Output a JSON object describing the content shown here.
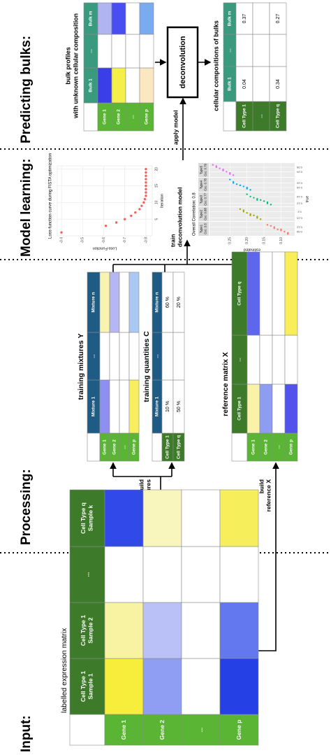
{
  "headings": [
    "Input:",
    "Processing:",
    "Model learning:",
    "Predicting bulks:"
  ],
  "expression_matrix": {
    "title": "labelled expression matrix",
    "columns": [
      [
        "Cell Type 1",
        "Sample 1"
      ],
      [
        "Cell Type 1",
        "Sample 2"
      ],
      [
        "..."
      ],
      [
        "Cell Type q",
        "Sample k"
      ]
    ],
    "rows": [
      "Gene 1",
      "Gene 2",
      "...",
      "Gene p"
    ],
    "colors": [
      [
        "#f7ee3c",
        "#f8f3a2",
        "#ffffff",
        "#3149e8"
      ],
      [
        "#8f9df3",
        "#bac1f6",
        "#ffffff",
        "#f8f5bd"
      ],
      [
        "#ffffff",
        "#ffffff",
        "#ffffff",
        "#ffffff"
      ],
      [
        "#2541e6",
        "#6378ee",
        "#ffffff",
        "#f7ee5c"
      ]
    ]
  },
  "arrows": {
    "build_mixtures": [
      "build",
      "training mixtures"
    ],
    "build_reference": [
      "build",
      "reference X"
    ],
    "train": [
      "train",
      "deconvolution model"
    ],
    "apply": "apply model"
  },
  "training_mixtures": {
    "title": "training mixtures Y",
    "columns": [
      "Mixture 1",
      "...",
      "Mixture n"
    ],
    "rows": [
      "Gene 1",
      "Gene 2",
      "...",
      "Gene p"
    ],
    "colors": [
      [
        "#8e90f0",
        "#ffffff",
        "#f8f4b0"
      ],
      [
        "#ffffff",
        "#ffffff",
        "#b6b6f2"
      ],
      [
        "#ffffff",
        "#ffffff",
        "#ffffff"
      ],
      [
        "#f8ef60",
        "#ffffff",
        "#a9c8f2"
      ]
    ]
  },
  "training_quantities": {
    "title": "training quantities C",
    "columns": [
      "Mixture 1",
      "...",
      "Mixture n"
    ],
    "rows": [
      "Cell Type 1",
      "Cell Type q"
    ],
    "cells": [
      [
        "10 %",
        null,
        "60 %"
      ],
      [
        "50 %",
        null,
        "20 %"
      ]
    ]
  },
  "reference_matrix": {
    "title": "reference matrix X",
    "columns": [
      "Cell Type 1",
      "...",
      "Cell Type q"
    ],
    "rows": [
      "Gene 1",
      "Gene 2",
      "...",
      "Gene p"
    ],
    "colors": [
      [
        "#f8f3a8",
        "#ffffff",
        "#5e66ee"
      ],
      [
        "#8e9cf3",
        "#ffffff",
        "#ffffff"
      ],
      [
        "#ffffff",
        "#ffffff",
        "#ffffff"
      ],
      [
        "#5252ec",
        "#ffffff",
        "#f8ee5a"
      ]
    ]
  },
  "chart_data": [
    {
      "type": "scatter",
      "title": "Loss-function curve during FISTA optimization",
      "xlabel": "Iteration",
      "ylabel": "Loss-Function",
      "x": [
        1,
        3,
        4,
        5,
        6,
        7,
        8,
        9,
        10,
        11,
        12,
        13,
        14,
        15,
        16,
        17,
        18,
        19,
        20
      ],
      "values": [
        -0.4,
        -0.61,
        -0.66,
        -0.7,
        -0.73,
        -0.75,
        -0.77,
        -0.78,
        -0.79,
        -0.795,
        -0.8,
        -0.8,
        -0.8,
        -0.8,
        -0.8,
        -0.8,
        -0.8,
        -0.8,
        -0.8
      ],
      "xlim": [
        0,
        21
      ],
      "ylim": [
        -0.83,
        -0.38
      ],
      "xticks": [
        5,
        10,
        15,
        20
      ],
      "yticks": [
        -0.8,
        -0.7,
        -0.6,
        -0.5,
        -0.4
      ],
      "color": "#f0625a",
      "grid": true
    },
    {
      "type": "facet_scatter",
      "title": "Overall Correlation: 0.8",
      "xlabel": "true",
      "ylabel": "estimated",
      "ylim": [
        0.06,
        0.31
      ],
      "yticks": [
        {
          "value": 0.1,
          "label": "0.10"
        },
        0.15,
        {
          "value": 0.2,
          "label": "0.20"
        },
        0.25
      ],
      "grid": true,
      "facets": [
        {
          "name": "Type1",
          "label": "Ccc: 0.8",
          "color": "#f8766d",
          "xlim": [
            0.05,
            0.16
          ],
          "xticks": [
            0.08,
            0.12
          ],
          "x": [
            0.06,
            0.07,
            0.08,
            0.09,
            0.1,
            0.1,
            0.11,
            0.12,
            0.13,
            0.14
          ],
          "values": [
            0.08,
            0.08,
            0.09,
            0.1,
            0.1,
            0.11,
            0.12,
            0.12,
            0.13,
            0.14
          ]
        },
        {
          "name": "Type2",
          "label": "Ccc: 0.88",
          "color": "#a3a500",
          "xlim": [
            0.13,
            0.23
          ],
          "xticks": [
            0.15,
            0.2
          ],
          "x": [
            0.14,
            0.15,
            0.16,
            0.17,
            0.17,
            0.18,
            0.19,
            0.2,
            0.21,
            0.22
          ],
          "values": [
            0.16,
            0.17,
            0.17,
            0.18,
            0.19,
            0.19,
            0.2,
            0.21,
            0.21,
            0.22
          ]
        },
        {
          "name": "Type3",
          "label": "Ccc: 0.77",
          "color": "#00bf7d",
          "xlim": [
            0.1,
            0.21
          ],
          "xticks": [
            0.12,
            0.18
          ],
          "x": [
            0.11,
            0.12,
            0.13,
            0.14,
            0.15,
            0.15,
            0.16,
            0.17,
            0.18,
            0.2
          ],
          "values": [
            0.13,
            0.14,
            0.14,
            0.15,
            0.16,
            0.17,
            0.17,
            0.18,
            0.19,
            0.2
          ]
        },
        {
          "name": "Type4",
          "label": "Ccc: 0.78",
          "color": "#00b0f6",
          "xlim": [
            0.15,
            0.26
          ],
          "xticks": [
            0.18,
            0.22
          ],
          "x": [
            0.16,
            0.17,
            0.18,
            0.19,
            0.2,
            0.2,
            0.21,
            0.22,
            0.23,
            0.25
          ],
          "values": [
            0.19,
            0.2,
            0.2,
            0.21,
            0.22,
            0.22,
            0.23,
            0.24,
            0.24,
            0.25
          ]
        },
        {
          "name": "Type5",
          "label": "Ccc: 0.79",
          "color": "#e76bf3",
          "xlim": [
            0.2,
            0.31
          ],
          "xticks": [
            0.24,
            0.28
          ],
          "x": [
            0.21,
            0.22,
            0.23,
            0.24,
            0.25,
            0.26,
            0.27,
            0.28,
            0.29,
            0.3
          ],
          "values": [
            0.24,
            0.25,
            0.25,
            0.26,
            0.27,
            0.27,
            0.28,
            0.29,
            0.29,
            0.3
          ]
        }
      ]
    }
  ],
  "bulk_profiles": {
    "title": [
      "bulk profiles",
      "with unknown cellular composition"
    ],
    "columns": [
      "Bulk 1",
      "...",
      "Bulk m"
    ],
    "rows": [
      "Gene 1",
      "Gene 2",
      "...",
      "Gene p"
    ],
    "colors": [
      [
        "#3a3ee6",
        "#ffffff",
        "#b0b4f0"
      ],
      [
        "#f5ef4a",
        "#ffffff",
        "#4a4ef0"
      ],
      [
        "#ffffff",
        "#ffffff",
        "#ffffff"
      ],
      [
        "#fbe8c0",
        "#ffffff",
        "#79abef"
      ]
    ]
  },
  "deconvolution": "deconvolution",
  "compositions": {
    "title": "cellular compositions of bulks",
    "columns": [
      "Bulk 1",
      "...",
      "Bulk m"
    ],
    "rows": [
      "Cell Type 1",
      "...",
      "Cell Type q"
    ],
    "cells": [
      [
        "0.04",
        null,
        "0.37"
      ],
      [
        null,
        null,
        null
      ],
      [
        "0.34",
        null,
        "0.27"
      ]
    ]
  }
}
